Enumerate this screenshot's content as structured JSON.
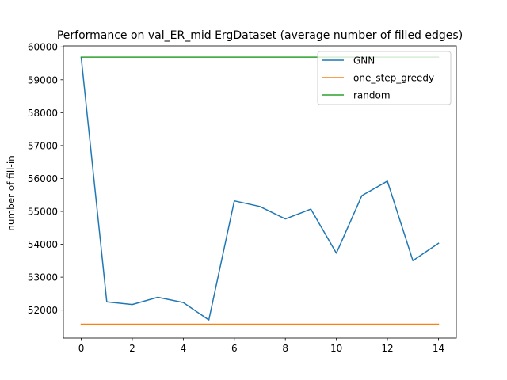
{
  "chart_data": {
    "type": "line",
    "title": "Performance on val_ER_mid ErgDataset (average number of filled edges)",
    "xlabel": "",
    "ylabel": "number of fill-in",
    "xlim": [
      -0.7,
      14.7
    ],
    "ylim": [
      51150,
      60030
    ],
    "xticks": [
      0,
      2,
      4,
      6,
      8,
      10,
      12,
      14
    ],
    "yticks": [
      52000,
      53000,
      54000,
      55000,
      56000,
      57000,
      58000,
      59000,
      60000
    ],
    "grid": false,
    "legend_position": "top-right",
    "x": [
      0,
      1,
      2,
      3,
      4,
      5,
      6,
      7,
      8,
      9,
      10,
      11,
      12,
      13,
      14
    ],
    "series": [
      {
        "name": "GNN",
        "color": "#1f77b4",
        "values": [
          59680,
          52250,
          52170,
          52390,
          52230,
          51700,
          55320,
          55150,
          54770,
          55070,
          53730,
          55480,
          55920,
          53500,
          54030
        ]
      },
      {
        "name": "one_step_greedy",
        "color": "#ff7f0e",
        "values": [
          51570,
          51570,
          51570,
          51570,
          51570,
          51570,
          51570,
          51570,
          51570,
          51570,
          51570,
          51570,
          51570,
          51570,
          51570
        ]
      },
      {
        "name": "random",
        "color": "#2ca02c",
        "values": [
          59690,
          59690,
          59690,
          59690,
          59690,
          59690,
          59690,
          59690,
          59690,
          59690,
          59690,
          59690,
          59690,
          59690,
          59690
        ]
      }
    ]
  }
}
